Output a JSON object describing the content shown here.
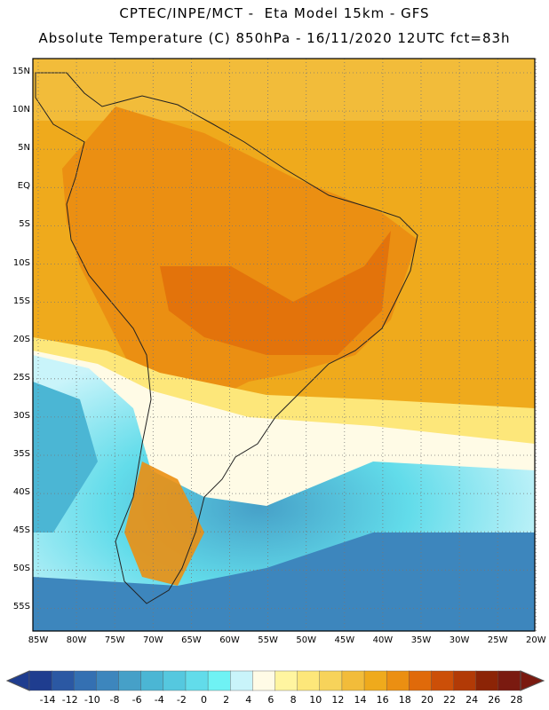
{
  "header": {
    "line1": "CPTEC/INPE/MCT -  Eta Model 15km - GFS",
    "line2": "Absolute Temperature (C) 850hPa - 16/11/2020 12UTC fct=83h"
  },
  "map": {
    "lat_labels": [
      "15N",
      "10N",
      "5N",
      "EQ",
      "5S",
      "10S",
      "15S",
      "20S",
      "25S",
      "30S",
      "35S",
      "40S",
      "45S",
      "50S",
      "55S"
    ],
    "lon_labels": [
      "85W",
      "80W",
      "75W",
      "70W",
      "65W",
      "60W",
      "55W",
      "50W",
      "45W",
      "40W",
      "35W",
      "30W",
      "25W",
      "20W"
    ]
  },
  "colorbar": {
    "labels": [
      "-14",
      "-12",
      "-10",
      "-8",
      "-6",
      "-4",
      "-2",
      "0",
      "2",
      "4",
      "6",
      "8",
      "10",
      "12",
      "14",
      "16",
      "18",
      "20",
      "22",
      "24",
      "26",
      "28"
    ],
    "colors": [
      "#1f3d8f",
      "#2b58a3",
      "#3470b2",
      "#3d86bd",
      "#46a0c8",
      "#4bb6d4",
      "#55c8df",
      "#62dcea",
      "#6ff2f4",
      "#c9f4fa",
      "#fffbe6",
      "#fff5a0",
      "#fde77a",
      "#f7d35a",
      "#f2bc3a",
      "#efaa1c",
      "#eb8f12",
      "#e06a0a",
      "#cc4f08",
      "#b23a06",
      "#8c2406",
      "#7a1a10"
    ],
    "under_color": "#1f3d8f",
    "over_color": "#7a1a10"
  }
}
